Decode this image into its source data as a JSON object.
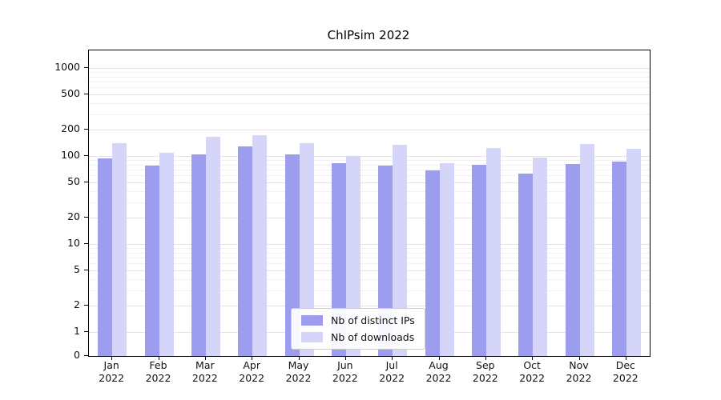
{
  "chart_data": {
    "type": "bar",
    "title": "ChIPsim 2022",
    "categories": [
      "Jan",
      "Feb",
      "Mar",
      "Apr",
      "May",
      "Jun",
      "Jul",
      "Aug",
      "Sep",
      "Oct",
      "Nov",
      "Dec"
    ],
    "year_label": "2022",
    "series": [
      {
        "name": "Nb of distinct IPs",
        "color": "#9d9df0",
        "values": [
          95,
          78,
          105,
          130,
          105,
          83,
          78,
          68,
          80,
          63,
          82,
          86
        ]
      },
      {
        "name": "Nb of downloads",
        "color": "#d5d5f9",
        "values": [
          140,
          108,
          165,
          172,
          140,
          100,
          133,
          83,
          123,
          97,
          138,
          122
        ]
      }
    ],
    "yticks": [
      0,
      1,
      2,
      5,
      10,
      20,
      50,
      100,
      200,
      500,
      1000
    ],
    "ylim": [
      0,
      1500
    ],
    "scale": "symlog",
    "grid": true,
    "legend_position": "bottom-center"
  }
}
